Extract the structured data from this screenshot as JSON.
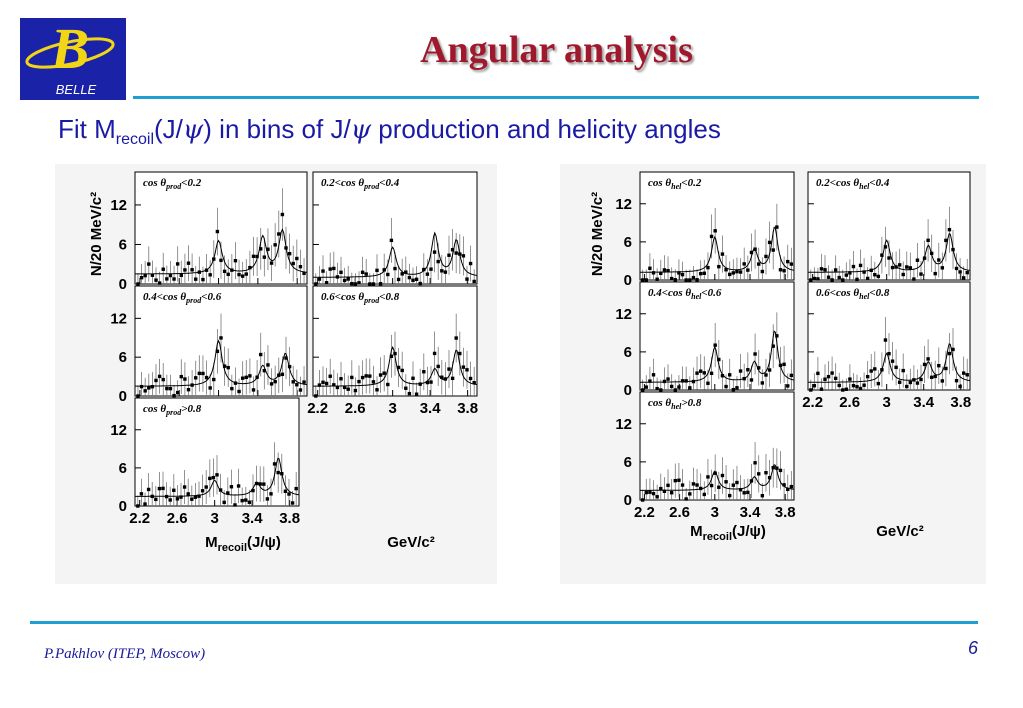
{
  "slide": {
    "title": "Angular analysis",
    "subtitle": {
      "t1": "Fit M",
      "t2": "recoil",
      "t3": "(J/",
      "psi": "ψ",
      "t4": ") in bins of J/",
      "t5": " production and helicity angles"
    },
    "footer": "P.Pakhlov (ITEP, Moscow)",
    "page_number": "6",
    "logo": {
      "mark": "B",
      "text": "BELLE"
    }
  },
  "colors": {
    "title": "#a0182c",
    "accent_rule": "#1e9fd0",
    "text_blue": "#1a1aa6",
    "logo_bg": "#1a22a8",
    "logo_letter": "#f2d515"
  },
  "chart_data": [
    {
      "type": "scatter",
      "ylabel": "N/20 MeV/c²",
      "xlabel_parts": [
        "M",
        "recoil",
        "(J/ψ)"
      ],
      "x_unit": "GeV/c²",
      "x_ticks": [
        "2.2",
        "2.6",
        "3",
        "3.4",
        "3.8"
      ],
      "y_ticks": [
        "0",
        "6",
        "12"
      ],
      "xlim": [
        2.15,
        3.9
      ],
      "ylim": [
        0,
        17
      ],
      "subplots": [
        {
          "label_parts": [
            "cos θ",
            "prod",
            "<0.2"
          ],
          "peaks": [
            [
              3.0,
              5.0
            ],
            [
              3.45,
              5.5
            ],
            [
              3.65,
              6.5
            ]
          ],
          "bg": 1.5
        },
        {
          "label_parts": [
            "0.2<cos θ",
            "prod",
            "<0.4"
          ],
          "peaks": [
            [
              3.0,
              4.5
            ],
            [
              3.45,
              6.5
            ],
            [
              3.68,
              5.5
            ]
          ],
          "bg": 1.0
        },
        {
          "label_parts": [
            "0.4<cos θ",
            "prod",
            "<0.6"
          ],
          "peaks": [
            [
              3.0,
              7.0
            ],
            [
              3.45,
              3.0
            ],
            [
              3.68,
              5.0
            ]
          ],
          "bg": 1.5
        },
        {
          "label_parts": [
            "0.6<cos θ",
            "prod",
            "<0.8"
          ],
          "peaks": [
            [
              3.0,
              6.0
            ],
            [
              3.45,
              2.5
            ],
            [
              3.68,
              5.5
            ]
          ],
          "bg": 1.5
        },
        {
          "label_parts": [
            "cos θ",
            "prod",
            ">0.8"
          ],
          "peaks": [
            [
              3.0,
              2.5
            ],
            [
              3.45,
              2.0
            ],
            [
              3.68,
              6.0
            ]
          ],
          "bg": 1.5
        }
      ]
    },
    {
      "type": "scatter",
      "ylabel": "N/20 MeV/c²",
      "xlabel_parts": [
        "M",
        "recoil",
        "(J/ψ)"
      ],
      "x_unit": "GeV/c²",
      "x_ticks": [
        "2.2",
        "2.6",
        "3",
        "3.4",
        "3.8"
      ],
      "y_ticks": [
        "0",
        "6",
        "12"
      ],
      "xlim": [
        2.15,
        3.9
      ],
      "ylim": [
        0,
        17
      ],
      "subplots": [
        {
          "label_parts": [
            "cos θ",
            "hel",
            "<0.2"
          ],
          "peaks": [
            [
              3.0,
              5.5
            ],
            [
              3.45,
              3.5
            ],
            [
              3.68,
              7.0
            ]
          ],
          "bg": 1.2
        },
        {
          "label_parts": [
            "0.2<cos θ",
            "hel",
            "<0.4"
          ],
          "peaks": [
            [
              3.0,
              5.0
            ],
            [
              3.45,
              4.0
            ],
            [
              3.68,
              6.0
            ]
          ],
          "bg": 1.2
        },
        {
          "label_parts": [
            "0.4<cos θ",
            "hel",
            "<0.6"
          ],
          "peaks": [
            [
              3.0,
              5.5
            ],
            [
              3.45,
              3.0
            ],
            [
              3.68,
              8.0
            ]
          ],
          "bg": 1.2
        },
        {
          "label_parts": [
            "0.6<cos θ",
            "hel",
            "<0.8"
          ],
          "peaks": [
            [
              3.0,
              4.5
            ],
            [
              3.45,
              3.0
            ],
            [
              3.68,
              6.0
            ]
          ],
          "bg": 1.2
        },
        {
          "label_parts": [
            "cos θ",
            "hel",
            ">0.8"
          ],
          "peaks": [
            [
              3.0,
              3.0
            ],
            [
              3.45,
              2.0
            ],
            [
              3.68,
              4.0
            ]
          ],
          "bg": 1.5
        }
      ]
    }
  ]
}
